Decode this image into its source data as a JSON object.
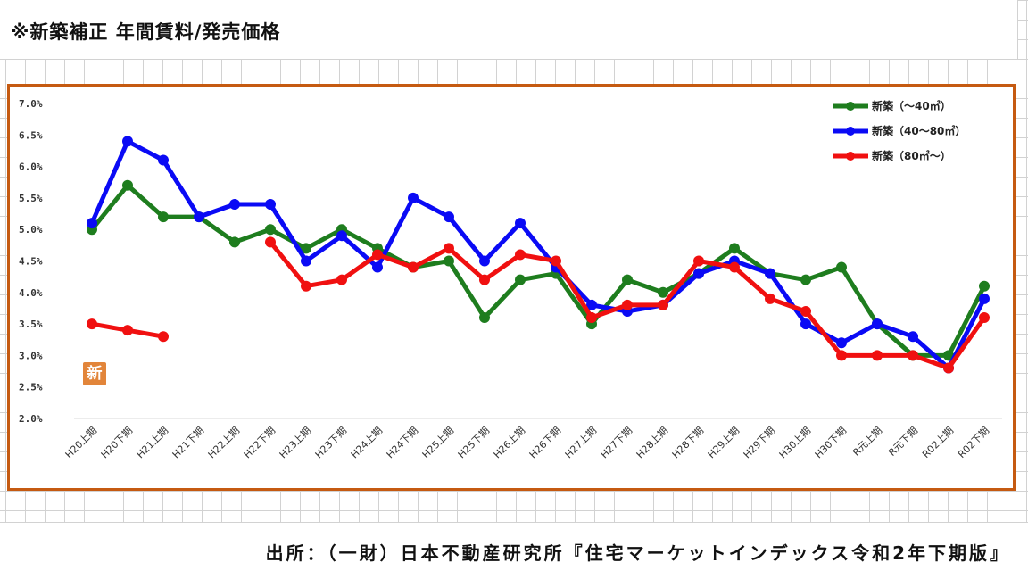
{
  "page": {
    "title": "※新築補正 年間賃料/発売価格",
    "source": "出所：（一財）日本不動産研究所『住宅マーケットインデックス令和2年下期版』",
    "badge": "新"
  },
  "chart_data": {
    "type": "line",
    "title": "",
    "xlabel": "",
    "ylabel": "",
    "ylim": [
      2.0,
      7.0
    ],
    "yticks": [
      "7.0%",
      "6.5%",
      "6.0%",
      "5.5%",
      "5.0%",
      "4.5%",
      "4.0%",
      "3.5%",
      "3.0%",
      "2.5%",
      "2.0%"
    ],
    "ytick_values": [
      7.0,
      6.5,
      6.0,
      5.5,
      5.0,
      4.5,
      4.0,
      3.5,
      3.0,
      2.5,
      2.0
    ],
    "grid": {
      "horizontal": false,
      "vertical": false
    },
    "legend_position": "top-right",
    "categories": [
      "H20上期",
      "H20下期",
      "H21上期",
      "H21下期",
      "H22上期",
      "H22下期",
      "H23上期",
      "H23下期",
      "H24上期",
      "H24下期",
      "H25上期",
      "H25下期",
      "H26上期",
      "H26下期",
      "H27上期",
      "H27下期",
      "H28上期",
      "H28下期",
      "H29上期",
      "H29下期",
      "H30上期",
      "H30下期",
      "R元上期",
      "R元下期",
      "R02上期",
      "R02下期"
    ],
    "series": [
      {
        "name": "新築（～40㎡）",
        "color": "#1e7d1e",
        "values": [
          5.0,
          5.7,
          5.2,
          5.2,
          4.8,
          5.0,
          4.7,
          5.0,
          4.7,
          4.4,
          4.5,
          3.6,
          4.2,
          4.3,
          3.5,
          4.2,
          4.0,
          4.3,
          4.7,
          4.3,
          4.2,
          4.4,
          3.5,
          3.0,
          3.0,
          4.1
        ]
      },
      {
        "name": "新築（40～80㎡）",
        "color": "#0a0af5",
        "values": [
          5.1,
          6.4,
          6.1,
          5.2,
          5.4,
          5.4,
          4.5,
          4.9,
          4.4,
          5.5,
          5.2,
          4.5,
          5.1,
          4.4,
          3.8,
          3.7,
          3.8,
          4.3,
          4.5,
          4.3,
          3.5,
          3.2,
          3.5,
          3.3,
          2.8,
          3.9
        ]
      },
      {
        "name": "新築（80㎡～）",
        "color": "#f01010",
        "values": [
          3.5,
          3.4,
          3.3,
          null,
          null,
          4.8,
          4.1,
          4.2,
          4.6,
          4.4,
          4.7,
          4.2,
          4.6,
          4.5,
          3.6,
          3.8,
          3.8,
          4.5,
          4.4,
          3.9,
          3.7,
          3.0,
          3.0,
          3.0,
          2.8,
          3.6
        ]
      }
    ]
  }
}
